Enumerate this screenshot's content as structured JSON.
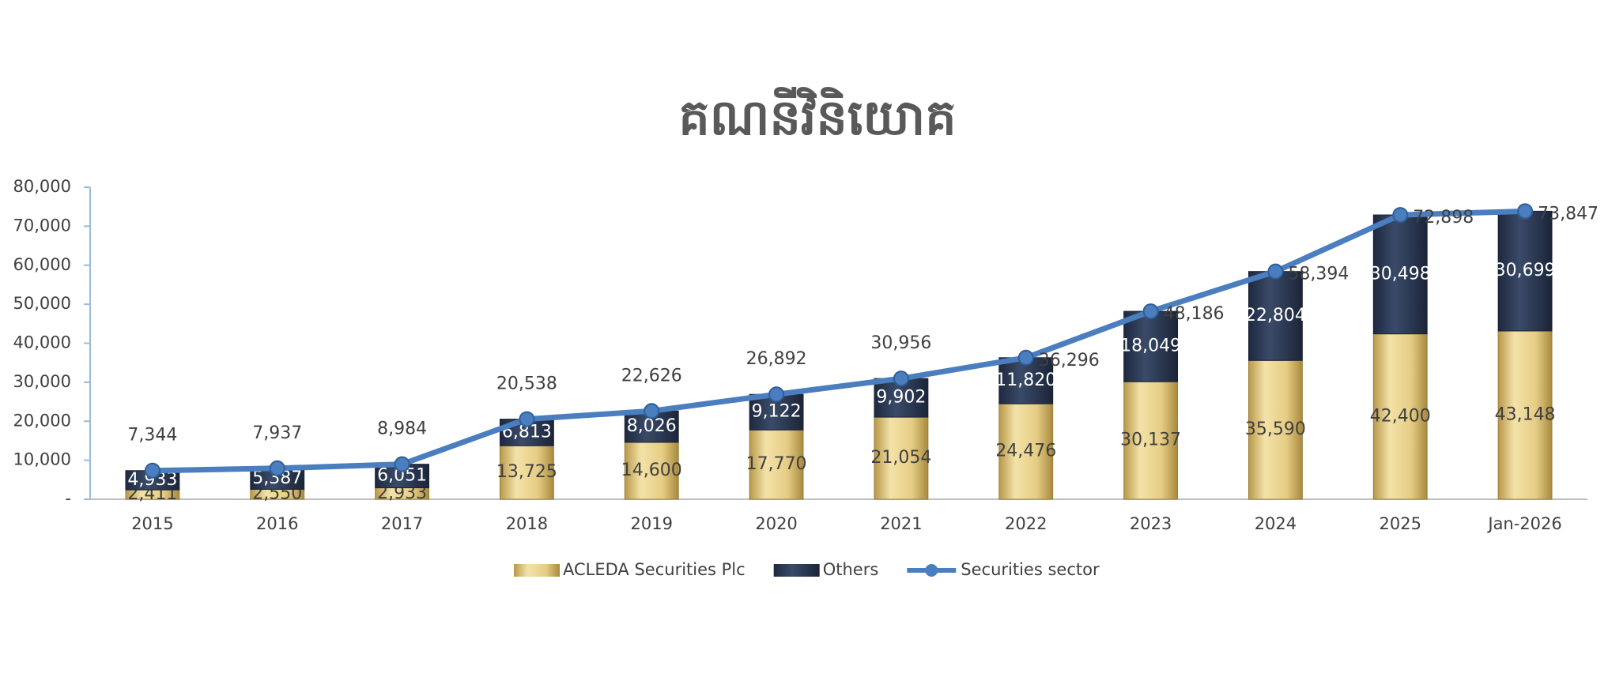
{
  "chart_data": {
    "type": "bar",
    "stacked": true,
    "title": "គណនីវិនិយោគ",
    "categories": [
      "2015",
      "2016",
      "2017",
      "2018",
      "2019",
      "2020",
      "2021",
      "2022",
      "2023",
      "2024",
      "2025",
      "Jan-2026"
    ],
    "series": [
      {
        "name": "ACLEDA Securities Plc",
        "color": "#e3c97f",
        "values": [
          2411,
          2550,
          2933,
          13725,
          14600,
          17770,
          21054,
          24476,
          30137,
          35590,
          42400,
          43148
        ],
        "value_labels": [
          "2,411",
          "2,550",
          "2,933",
          "13,725",
          "14,600",
          "17,770",
          "21,054",
          "24,476",
          "30,137",
          "35,590",
          "42,400",
          "43,148"
        ]
      },
      {
        "name": "Others",
        "color": "#2d3a55",
        "values": [
          4933,
          5387,
          6051,
          6813,
          8026,
          9122,
          9902,
          11820,
          18049,
          22804,
          30498,
          30699
        ],
        "value_labels": [
          "4,933",
          "5,387",
          "6,051",
          "6,813",
          "8,026",
          "9,122",
          "9,902",
          "11,820",
          "18,049",
          "22,804",
          "30,498",
          "30,699"
        ]
      },
      {
        "name": "Securities sector",
        "type": "line",
        "color": "#4a7ebf",
        "values": [
          7344,
          7937,
          8984,
          20538,
          22626,
          26892,
          30956,
          36296,
          48186,
          58394,
          72898,
          73847
        ],
        "value_labels": [
          "7,344",
          "7,937",
          "8,984",
          "20,538",
          "22,626",
          "26,892",
          "30,956",
          "36,296",
          "48,186",
          "58,394",
          "72,898",
          "73,847"
        ]
      }
    ],
    "ylim": [
      0,
      80000
    ],
    "yticks": [
      {
        "value": 0,
        "label": "-"
      },
      {
        "value": 10000,
        "label": "10,000"
      },
      {
        "value": 20000,
        "label": "20,000"
      },
      {
        "value": 30000,
        "label": "30,000"
      },
      {
        "value": 40000,
        "label": "40,000"
      },
      {
        "value": 50000,
        "label": "50,000"
      },
      {
        "value": 60000,
        "label": "60,000"
      },
      {
        "value": 70000,
        "label": "70,000"
      },
      {
        "value": 80000,
        "label": "80,000"
      }
    ]
  }
}
